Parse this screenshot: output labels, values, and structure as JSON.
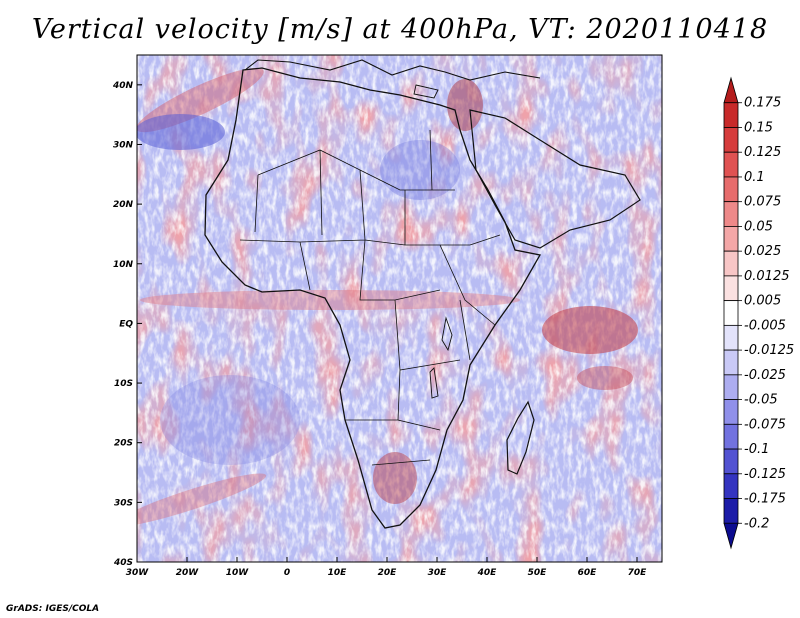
{
  "chart_data": {
    "type": "heatmap",
    "title": "Vertical velocity [m/s] at 400hPa, VT: 2020110418",
    "variable": "Vertical velocity",
    "units": "m/s",
    "level": "400hPa",
    "valid_time": "2020110418",
    "x_ticks": [
      "30W",
      "20W",
      "10W",
      "0",
      "10E",
      "20E",
      "30E",
      "40E",
      "50E",
      "60E",
      "70E"
    ],
    "y_ticks": [
      "40N",
      "30N",
      "20N",
      "10N",
      "EQ",
      "10S",
      "20S",
      "30S",
      "40S"
    ],
    "xlim": [
      -30,
      75
    ],
    "ylim": [
      -40,
      45
    ],
    "colorbar_labels": [
      "0.175",
      "0.15",
      "0.125",
      "0.1",
      "0.075",
      "0.05",
      "0.025",
      "0.0125",
      "0.005",
      "-0.005",
      "-0.0125",
      "-0.025",
      "-0.05",
      "-0.075",
      "-0.1",
      "-0.125",
      "-0.175",
      "-0.2"
    ],
    "colorbar_colors": [
      "#b41c1c",
      "#c82a2a",
      "#d63c3c",
      "#e05252",
      "#e76c6c",
      "#ee8989",
      "#f4a7a7",
      "#f8c6c6",
      "#fbe1e1",
      "#ffffff",
      "#e3e3fb",
      "#c9c9f6",
      "#adadf0",
      "#9090ea",
      "#7272e0",
      "#5252d2",
      "#3434c0",
      "#1c1ca8",
      "#0c0c90"
    ],
    "colorbar_extend": "both"
  },
  "footer": {
    "credit": "GrADS: IGES/COLA"
  }
}
